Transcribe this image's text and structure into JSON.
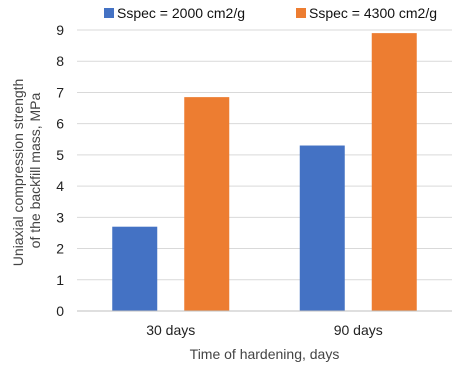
{
  "chart_data": {
    "type": "bar",
    "categories": [
      "30 days",
      "90 days"
    ],
    "series": [
      {
        "name": "Sspec = 2000 cm2/g",
        "color": "#4472c4",
        "values": [
          2.7,
          5.3
        ]
      },
      {
        "name": "Sspec = 4300 cm2/g",
        "color": "#ed7d31",
        "values": [
          6.85,
          8.9
        ]
      }
    ],
    "xlabel": "Time of hardening, days",
    "ylabel_lines": [
      "Uniaxial compression strength",
      "of the backfill mass, MPa"
    ],
    "ylim": [
      0,
      9
    ],
    "yticks": [
      "0",
      "1",
      "2",
      "3",
      "4",
      "5",
      "6",
      "7",
      "8",
      "9"
    ],
    "grid": true,
    "legend_position": "top"
  }
}
